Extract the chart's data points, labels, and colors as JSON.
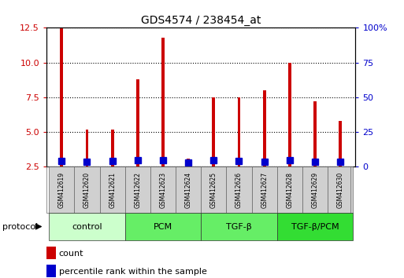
{
  "title": "GDS4574 / 238454_at",
  "samples": [
    "GSM412619",
    "GSM412620",
    "GSM412621",
    "GSM412622",
    "GSM412623",
    "GSM412624",
    "GSM412625",
    "GSM412626",
    "GSM412627",
    "GSM412628",
    "GSM412629",
    "GSM412630"
  ],
  "count_values": [
    12.5,
    5.2,
    5.2,
    8.8,
    11.8,
    3.1,
    7.5,
    7.5,
    8.0,
    10.0,
    7.2,
    5.8
  ],
  "percentile_values": [
    4.3,
    3.6,
    4.0,
    5.0,
    5.0,
    2.85,
    4.5,
    4.3,
    3.6,
    4.7,
    3.6,
    3.6
  ],
  "bar_color": "#cc0000",
  "percentile_color": "#0000cc",
  "ylim_left": [
    2.5,
    12.5
  ],
  "ylim_right": [
    0,
    100
  ],
  "yticks_left": [
    2.5,
    5.0,
    7.5,
    10.0,
    12.5
  ],
  "yticks_right": [
    0,
    25,
    50,
    75,
    100
  ],
  "groups": [
    {
      "label": "control",
      "start": 0,
      "end": 3,
      "color": "#ccffcc"
    },
    {
      "label": "PCM",
      "start": 3,
      "end": 6,
      "color": "#66ee66"
    },
    {
      "label": "TGF-β",
      "start": 6,
      "end": 9,
      "color": "#66ee66"
    },
    {
      "label": "TGF-β/PCM",
      "start": 9,
      "end": 12,
      "color": "#33dd33"
    }
  ],
  "protocol_label": "protocol",
  "legend_count_label": "count",
  "legend_percentile_label": "percentile rank within the sample",
  "bar_width": 0.12,
  "pct_marker_size": 6,
  "background_color": "#ffffff",
  "tick_label_color_left": "#cc0000",
  "tick_label_color_right": "#0000cc",
  "sample_box_color": "#d0d0d0",
  "ylabel_left_fontsize": 8,
  "ylabel_right_fontsize": 8,
  "title_fontsize": 10,
  "bar_label_fontsize": 5.5,
  "group_label_fontsize": 8
}
